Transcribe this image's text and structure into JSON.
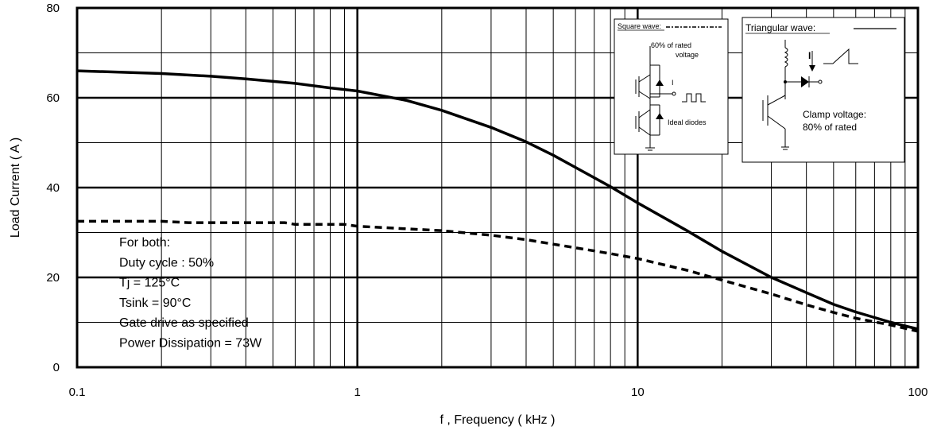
{
  "chart_data": {
    "type": "line",
    "xlabel": "f , Frequency ( kHz )",
    "ylabel": "Load Current  ( A )",
    "xscale": "log",
    "xlim": [
      0.1,
      100
    ],
    "ylim": [
      0,
      80
    ],
    "x_ticks": [
      "0.1",
      "1",
      "10",
      "100"
    ],
    "y_ticks": [
      "0",
      "20",
      "40",
      "60",
      "80"
    ],
    "grid": true,
    "series": [
      {
        "name": "Triangular wave",
        "style": "solid",
        "x": [
          0.1,
          0.2,
          0.3,
          0.4,
          0.6,
          0.8,
          1,
          1.5,
          2,
          3,
          4,
          5,
          6,
          8,
          10,
          15,
          20,
          30,
          40,
          50,
          60,
          80,
          100
        ],
        "y": [
          66,
          65.4,
          64.8,
          64.2,
          63.2,
          62.2,
          61.5,
          59.4,
          57.2,
          53.4,
          50.2,
          47.2,
          44.5,
          40.2,
          36.6,
          30.4,
          25.8,
          20,
          16.6,
          14,
          12.3,
          10,
          8.5
        ]
      },
      {
        "name": "Square wave",
        "style": "dashed",
        "x": [
          0.1,
          0.2,
          0.25,
          0.4,
          0.55,
          0.6,
          0.9,
          1,
          2,
          3,
          4,
          5,
          6,
          8,
          10,
          15,
          20,
          30,
          40,
          50,
          60,
          80,
          100
        ],
        "y": [
          32.5,
          32.5,
          32.2,
          32.2,
          32.2,
          31.8,
          31.8,
          31.4,
          30.4,
          29.4,
          28.4,
          27.4,
          26.6,
          25.3,
          24.2,
          21.6,
          19.4,
          16.3,
          13.9,
          12.2,
          10.9,
          9.4,
          8
        ]
      }
    ],
    "annotation": [
      "For both:",
      "Duty cycle : 50%",
      "Tj = 125°C",
      "Tsink = 90°C",
      "Gate drive as specified",
      "Power Dissipation = 73W"
    ],
    "inset_square": {
      "title": "Square wave:",
      "rated": "60% of rated",
      "voltage": "voltage",
      "diodes": "Ideal diodes",
      "current": "I"
    },
    "inset_triangular": {
      "title": "Triangular wave:",
      "clamp1": "Clamp voltage:",
      "clamp2": "80% of rated",
      "current": "I"
    }
  }
}
